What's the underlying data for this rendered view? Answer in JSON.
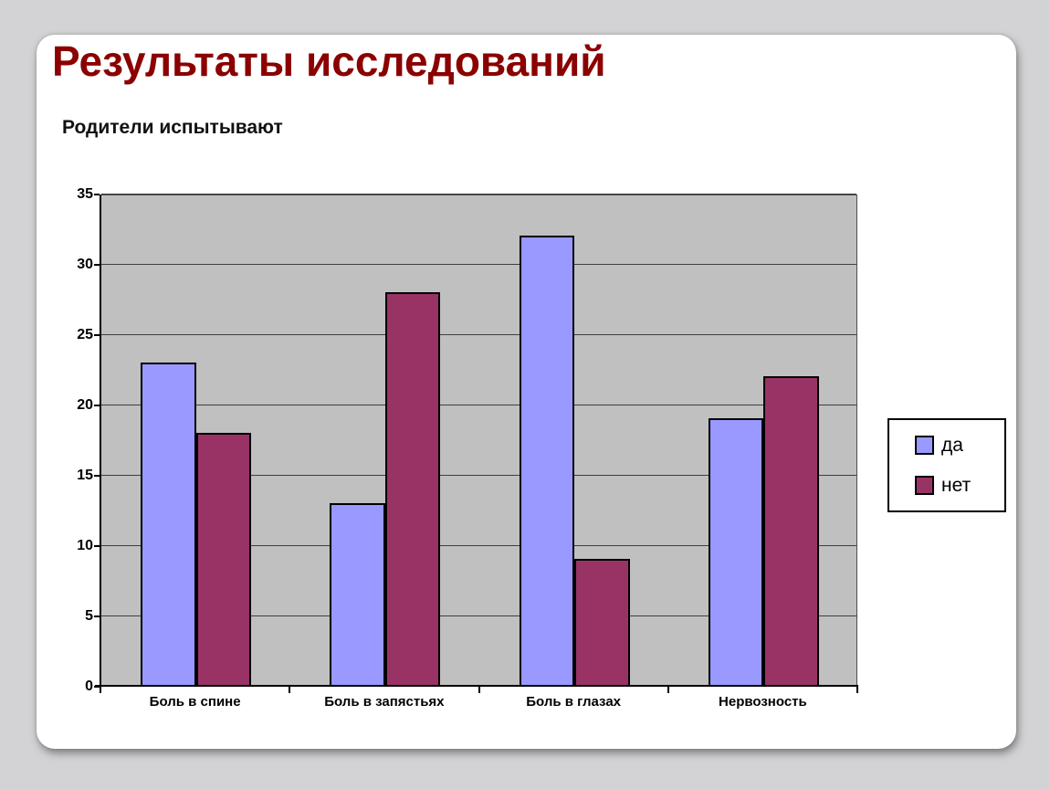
{
  "slide": {
    "title": "Результаты исследований",
    "subtitle": "Родители испытывают"
  },
  "chart_data": {
    "type": "bar",
    "title": "Родители испытывают",
    "categories": [
      "Боль в спине",
      "Боль в запястьях",
      "Боль в глазах",
      "Нервозность"
    ],
    "series": [
      {
        "name": "да",
        "color": "#9999FF",
        "values": [
          23,
          13,
          32,
          19
        ]
      },
      {
        "name": "нет",
        "color": "#993366",
        "values": [
          18,
          28,
          9,
          22
        ]
      }
    ],
    "xlabel": "",
    "ylabel": "",
    "ylim": [
      0,
      35
    ],
    "yticks": [
      0,
      5,
      10,
      15,
      20,
      25,
      30,
      35
    ],
    "grid": true,
    "legend_position": "right",
    "plot_background": "#C0C0C0",
    "gridline_color": "#3F3F3F",
    "title_color": "#8B0000"
  }
}
